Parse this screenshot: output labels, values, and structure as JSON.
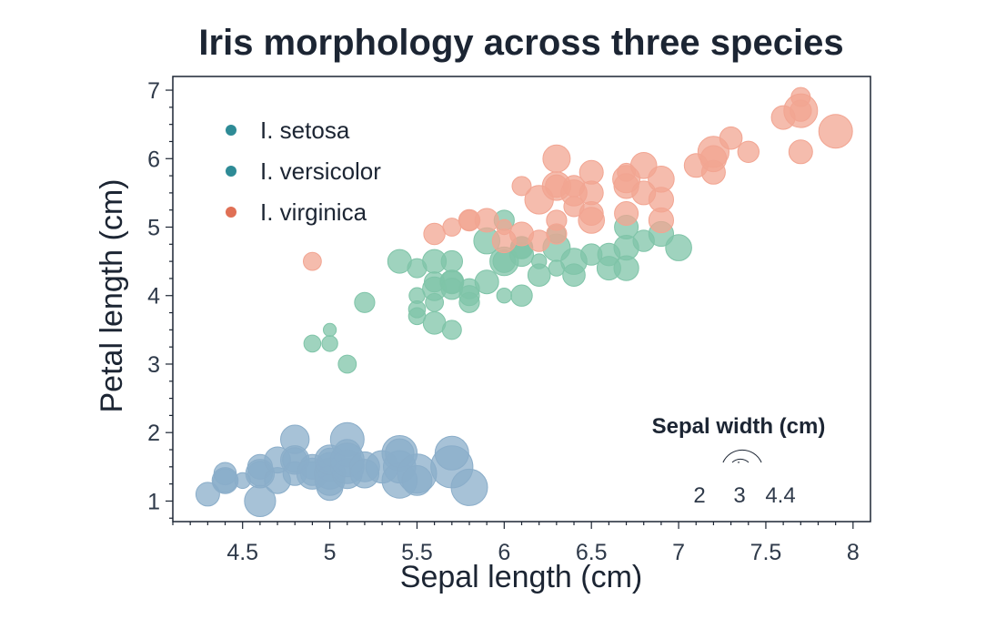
{
  "chart_data": {
    "type": "scatter",
    "title": "Iris morphology across three species",
    "xlabel": "Sepal length (cm)",
    "ylabel": "Petal length (cm)",
    "xlim": [
      4.1,
      8.1
    ],
    "ylim": [
      0.7,
      7.2
    ],
    "xticks": [
      4.5,
      5,
      5.5,
      6,
      6.5,
      7,
      7.5,
      8
    ],
    "yticks": [
      1,
      2,
      3,
      4,
      5,
      6,
      7
    ],
    "grid": false,
    "legend": "top-left",
    "size_encoding": {
      "title": "Sepal width (cm)",
      "values": [
        2,
        3,
        4.4
      ],
      "labels": [
        "2",
        "3",
        "4.4"
      ]
    },
    "series": [
      {
        "name": "I. setosa",
        "color": "#8aadc9",
        "legend_color": "#2e8b96",
        "points": [
          {
            "x": 4.3,
            "y": 1.1,
            "s": 3.0
          },
          {
            "x": 4.4,
            "y": 1.4,
            "s": 2.9
          },
          {
            "x": 4.4,
            "y": 1.3,
            "s": 3.0
          },
          {
            "x": 4.4,
            "y": 1.3,
            "s": 3.2
          },
          {
            "x": 4.5,
            "y": 1.3,
            "s": 2.3
          },
          {
            "x": 4.6,
            "y": 1.4,
            "s": 3.1
          },
          {
            "x": 4.6,
            "y": 1.5,
            "s": 3.1
          },
          {
            "x": 4.6,
            "y": 1.0,
            "s": 3.6
          },
          {
            "x": 4.6,
            "y": 1.4,
            "s": 3.4
          },
          {
            "x": 4.7,
            "y": 1.3,
            "s": 3.2
          },
          {
            "x": 4.7,
            "y": 1.6,
            "s": 3.2
          },
          {
            "x": 4.8,
            "y": 1.9,
            "s": 3.4
          },
          {
            "x": 4.8,
            "y": 1.6,
            "s": 3.4
          },
          {
            "x": 4.8,
            "y": 1.4,
            "s": 3.0
          },
          {
            "x": 4.8,
            "y": 1.6,
            "s": 3.1
          },
          {
            "x": 4.9,
            "y": 1.4,
            "s": 3.0
          },
          {
            "x": 4.9,
            "y": 1.5,
            "s": 3.1
          },
          {
            "x": 4.9,
            "y": 1.4,
            "s": 3.6
          },
          {
            "x": 5.0,
            "y": 1.4,
            "s": 3.6
          },
          {
            "x": 5.0,
            "y": 1.5,
            "s": 3.4
          },
          {
            "x": 5.0,
            "y": 1.6,
            "s": 3.0
          },
          {
            "x": 5.0,
            "y": 1.2,
            "s": 3.2
          },
          {
            "x": 5.0,
            "y": 1.3,
            "s": 3.5
          },
          {
            "x": 5.0,
            "y": 1.6,
            "s": 3.5
          },
          {
            "x": 5.1,
            "y": 1.4,
            "s": 3.5
          },
          {
            "x": 5.1,
            "y": 1.5,
            "s": 3.8
          },
          {
            "x": 5.1,
            "y": 1.7,
            "s": 3.3
          },
          {
            "x": 5.1,
            "y": 1.9,
            "s": 3.8
          },
          {
            "x": 5.1,
            "y": 1.6,
            "s": 3.8
          },
          {
            "x": 5.2,
            "y": 1.5,
            "s": 3.5
          },
          {
            "x": 5.2,
            "y": 1.4,
            "s": 3.4
          },
          {
            "x": 5.3,
            "y": 1.5,
            "s": 3.7
          },
          {
            "x": 5.4,
            "y": 1.7,
            "s": 3.9
          },
          {
            "x": 5.4,
            "y": 1.5,
            "s": 3.7
          },
          {
            "x": 5.4,
            "y": 1.3,
            "s": 3.9
          },
          {
            "x": 5.4,
            "y": 1.7,
            "s": 3.4
          },
          {
            "x": 5.5,
            "y": 1.4,
            "s": 4.2
          },
          {
            "x": 5.5,
            "y": 1.3,
            "s": 3.5
          },
          {
            "x": 5.7,
            "y": 1.5,
            "s": 4.4
          },
          {
            "x": 5.7,
            "y": 1.7,
            "s": 3.8
          },
          {
            "x": 5.8,
            "y": 1.2,
            "s": 4.0
          }
        ]
      },
      {
        "name": "I. versicolor",
        "color": "#7fc4a8",
        "legend_color": "#2e8b96",
        "points": [
          {
            "x": 4.9,
            "y": 3.3,
            "s": 2.4
          },
          {
            "x": 5.0,
            "y": 3.5,
            "s": 2.0
          },
          {
            "x": 5.0,
            "y": 3.3,
            "s": 2.3
          },
          {
            "x": 5.1,
            "y": 3.0,
            "s": 2.5
          },
          {
            "x": 5.2,
            "y": 3.9,
            "s": 2.7
          },
          {
            "x": 5.4,
            "y": 4.5,
            "s": 3.0
          },
          {
            "x": 5.5,
            "y": 4.0,
            "s": 2.3
          },
          {
            "x": 5.5,
            "y": 3.8,
            "s": 2.4
          },
          {
            "x": 5.5,
            "y": 3.7,
            "s": 2.4
          },
          {
            "x": 5.5,
            "y": 4.4,
            "s": 2.6
          },
          {
            "x": 5.6,
            "y": 3.9,
            "s": 2.5
          },
          {
            "x": 5.6,
            "y": 4.2,
            "s": 2.7
          },
          {
            "x": 5.6,
            "y": 4.5,
            "s": 3.0
          },
          {
            "x": 5.6,
            "y": 3.6,
            "s": 2.9
          },
          {
            "x": 5.6,
            "y": 4.1,
            "s": 3.0
          },
          {
            "x": 5.7,
            "y": 4.5,
            "s": 2.8
          },
          {
            "x": 5.7,
            "y": 3.5,
            "s": 2.6
          },
          {
            "x": 5.7,
            "y": 4.2,
            "s": 3.0
          },
          {
            "x": 5.7,
            "y": 4.2,
            "s": 2.9
          },
          {
            "x": 5.7,
            "y": 4.1,
            "s": 2.8
          },
          {
            "x": 5.8,
            "y": 4.1,
            "s": 2.7
          },
          {
            "x": 5.8,
            "y": 4.0,
            "s": 2.7
          },
          {
            "x": 5.8,
            "y": 3.9,
            "s": 2.7
          },
          {
            "x": 5.9,
            "y": 4.2,
            "s": 3.0
          },
          {
            "x": 5.9,
            "y": 4.8,
            "s": 3.2
          },
          {
            "x": 6.0,
            "y": 4.0,
            "s": 2.2
          },
          {
            "x": 6.0,
            "y": 4.5,
            "s": 2.9
          },
          {
            "x": 6.0,
            "y": 5.1,
            "s": 2.7
          },
          {
            "x": 6.0,
            "y": 4.5,
            "s": 3.4
          },
          {
            "x": 6.1,
            "y": 4.7,
            "s": 2.8
          },
          {
            "x": 6.1,
            "y": 4.0,
            "s": 2.8
          },
          {
            "x": 6.1,
            "y": 4.7,
            "s": 2.9
          },
          {
            "x": 6.1,
            "y": 4.6,
            "s": 3.0
          },
          {
            "x": 6.2,
            "y": 4.5,
            "s": 2.2
          },
          {
            "x": 6.2,
            "y": 4.3,
            "s": 2.9
          },
          {
            "x": 6.3,
            "y": 4.7,
            "s": 3.3
          },
          {
            "x": 6.3,
            "y": 4.9,
            "s": 2.5
          },
          {
            "x": 6.3,
            "y": 4.4,
            "s": 2.3
          },
          {
            "x": 6.4,
            "y": 4.5,
            "s": 3.2
          },
          {
            "x": 6.4,
            "y": 4.3,
            "s": 2.9
          },
          {
            "x": 6.5,
            "y": 4.6,
            "s": 2.8
          },
          {
            "x": 6.6,
            "y": 4.6,
            "s": 2.9
          },
          {
            "x": 6.6,
            "y": 4.4,
            "s": 3.0
          },
          {
            "x": 6.7,
            "y": 4.7,
            "s": 3.1
          },
          {
            "x": 6.7,
            "y": 4.4,
            "s": 3.1
          },
          {
            "x": 6.7,
            "y": 5.0,
            "s": 3.0
          },
          {
            "x": 6.8,
            "y": 4.8,
            "s": 2.8
          },
          {
            "x": 6.9,
            "y": 4.9,
            "s": 3.1
          },
          {
            "x": 7.0,
            "y": 4.7,
            "s": 3.2
          }
        ]
      },
      {
        "name": "I. virginica",
        "color": "#f2a592",
        "legend_color": "#e07055",
        "points": [
          {
            "x": 4.9,
            "y": 4.5,
            "s": 2.5
          },
          {
            "x": 5.6,
            "y": 4.9,
            "s": 2.8
          },
          {
            "x": 5.7,
            "y": 5.0,
            "s": 2.5
          },
          {
            "x": 5.8,
            "y": 5.1,
            "s": 2.7
          },
          {
            "x": 5.8,
            "y": 5.1,
            "s": 2.8
          },
          {
            "x": 5.9,
            "y": 5.1,
            "s": 3.0
          },
          {
            "x": 6.0,
            "y": 5.0,
            "s": 2.2
          },
          {
            "x": 6.0,
            "y": 4.8,
            "s": 3.0
          },
          {
            "x": 6.1,
            "y": 5.6,
            "s": 2.6
          },
          {
            "x": 6.1,
            "y": 4.9,
            "s": 3.0
          },
          {
            "x": 6.2,
            "y": 5.4,
            "s": 3.4
          },
          {
            "x": 6.2,
            "y": 4.8,
            "s": 2.8
          },
          {
            "x": 6.3,
            "y": 6.0,
            "s": 3.3
          },
          {
            "x": 6.3,
            "y": 5.1,
            "s": 2.7
          },
          {
            "x": 6.3,
            "y": 5.6,
            "s": 2.9
          },
          {
            "x": 6.3,
            "y": 4.9,
            "s": 2.7
          },
          {
            "x": 6.3,
            "y": 5.6,
            "s": 3.4
          },
          {
            "x": 6.4,
            "y": 5.5,
            "s": 3.2
          },
          {
            "x": 6.4,
            "y": 5.3,
            "s": 2.7
          },
          {
            "x": 6.4,
            "y": 5.6,
            "s": 2.8
          },
          {
            "x": 6.5,
            "y": 5.8,
            "s": 3.0
          },
          {
            "x": 6.5,
            "y": 5.5,
            "s": 3.0
          },
          {
            "x": 6.5,
            "y": 5.1,
            "s": 3.2
          },
          {
            "x": 6.5,
            "y": 5.2,
            "s": 3.0
          },
          {
            "x": 6.7,
            "y": 5.8,
            "s": 2.5
          },
          {
            "x": 6.7,
            "y": 5.7,
            "s": 3.3
          },
          {
            "x": 6.7,
            "y": 5.6,
            "s": 3.1
          },
          {
            "x": 6.7,
            "y": 5.2,
            "s": 3.0
          },
          {
            "x": 6.8,
            "y": 5.5,
            "s": 3.0
          },
          {
            "x": 6.8,
            "y": 5.9,
            "s": 3.2
          },
          {
            "x": 6.9,
            "y": 5.4,
            "s": 3.1
          },
          {
            "x": 6.9,
            "y": 5.7,
            "s": 3.2
          },
          {
            "x": 6.9,
            "y": 5.1,
            "s": 3.1
          },
          {
            "x": 7.1,
            "y": 5.9,
            "s": 3.0
          },
          {
            "x": 7.2,
            "y": 6.1,
            "s": 3.6
          },
          {
            "x": 7.2,
            "y": 5.8,
            "s": 3.0
          },
          {
            "x": 7.2,
            "y": 6.0,
            "s": 3.2
          },
          {
            "x": 7.3,
            "y": 6.3,
            "s": 2.9
          },
          {
            "x": 7.4,
            "y": 6.1,
            "s": 2.8
          },
          {
            "x": 7.6,
            "y": 6.6,
            "s": 3.0
          },
          {
            "x": 7.7,
            "y": 6.7,
            "s": 3.8
          },
          {
            "x": 7.7,
            "y": 6.9,
            "s": 2.6
          },
          {
            "x": 7.7,
            "y": 6.7,
            "s": 2.8
          },
          {
            "x": 7.7,
            "y": 6.1,
            "s": 3.0
          },
          {
            "x": 7.9,
            "y": 6.4,
            "s": 3.8
          }
        ]
      }
    ]
  }
}
